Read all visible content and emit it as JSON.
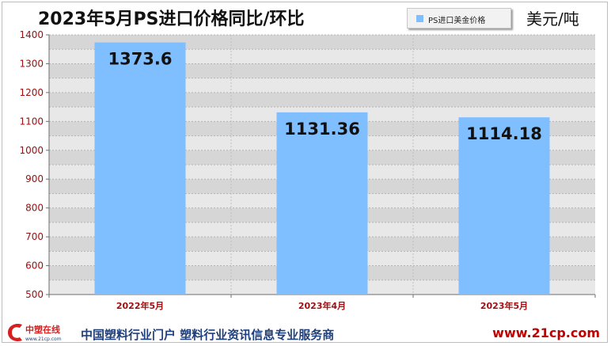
{
  "header": {
    "title": "2023年5月PS进口价格同比/环比",
    "unit": "美元/吨"
  },
  "legend": {
    "label": "PS进口美金价格",
    "color": "#80bfff"
  },
  "footer": {
    "logo_text": "中塑在线",
    "logo_sub": "www.21cp.com",
    "slogan": "中国塑料行业门户  塑料行业资讯信息专业服务商",
    "url": "www.21cp.com"
  },
  "chart_data": {
    "type": "bar",
    "title": "2023年5月PS进口价格同比/环比",
    "categories": [
      "2022年5月",
      "2023年4月",
      "2023年5月"
    ],
    "series": [
      {
        "name": "PS进口美金价格",
        "values": [
          1373.6,
          1131.36,
          1114.18
        ]
      }
    ],
    "data_labels": [
      "1373.6",
      "1131.36",
      "1114.18"
    ],
    "ylabel": "美元/吨",
    "ylim": [
      500,
      1400
    ],
    "yticks": [
      500,
      600,
      700,
      800,
      900,
      1000,
      1100,
      1200,
      1300,
      1400
    ],
    "grid": true,
    "legend_position": "top-right",
    "bar_color": "#80bfff"
  }
}
